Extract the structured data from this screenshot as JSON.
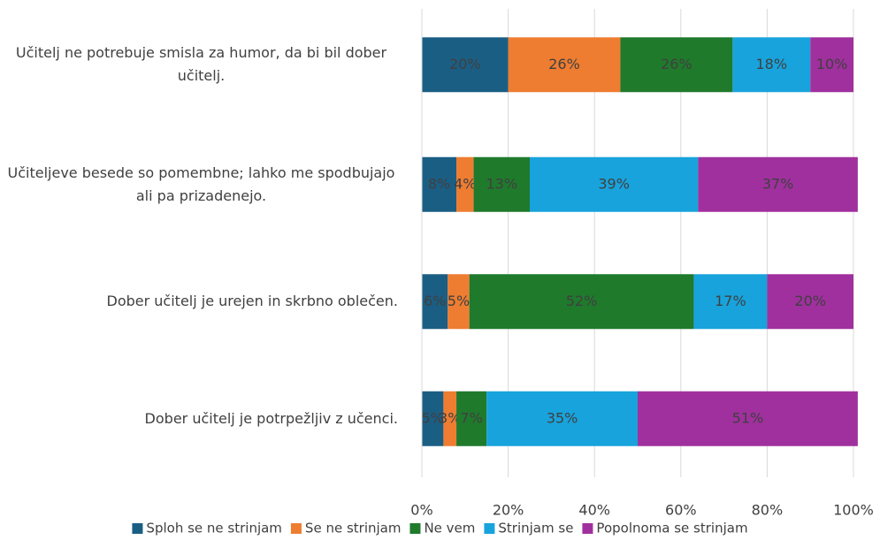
{
  "chart_data": {
    "type": "stacked_barh",
    "categories": [
      "Učitelj ne potrebuje smisla za humor, da bi bil dober učitelj.",
      "Učiteljeve besede so pomembne; lahko me spodbujajo ali pa prizadenejo.",
      "Dober učitelj je urejen in skrbno oblečen.",
      "Dober učitelj je potrpežljiv z učenci."
    ],
    "series": [
      {
        "name": "Sploh se ne strinjam",
        "color": "#1b5e84",
        "values": [
          20,
          8,
          6,
          5
        ],
        "value_labels": [
          "20%",
          "8%",
          "6%",
          "5%"
        ]
      },
      {
        "name": "Se ne strinjam",
        "color": "#ee7d31",
        "values": [
          26,
          4,
          5,
          3
        ],
        "value_labels": [
          "26%",
          "4%",
          "5%",
          "3%"
        ]
      },
      {
        "name": "Ne vem",
        "color": "#1f7a2c",
        "values": [
          26,
          13,
          52,
          7
        ],
        "value_labels": [
          "26%",
          "13%",
          "52%",
          "7%"
        ]
      },
      {
        "name": "Strinjam se",
        "color": "#18a3dc",
        "values": [
          18,
          39,
          17,
          35
        ],
        "value_labels": [
          "18%",
          "39%",
          "17%",
          "35%"
        ]
      },
      {
        "name": "Popolnoma se strinjam",
        "color": "#a0309e",
        "values": [
          10,
          37,
          20,
          51
        ],
        "value_labels": [
          "10%",
          "37%",
          "20%",
          "51%"
        ]
      }
    ],
    "xlim": [
      0,
      100
    ],
    "xticks": [
      {
        "value": 0,
        "label": "0%"
      },
      {
        "value": 20,
        "label": "20%"
      },
      {
        "value": 40,
        "label": "40%"
      },
      {
        "value": 60,
        "label": "60%"
      },
      {
        "value": 80,
        "label": "80%"
      },
      {
        "value": 100,
        "label": "100%"
      }
    ],
    "grid": true,
    "legend": "bottom"
  }
}
